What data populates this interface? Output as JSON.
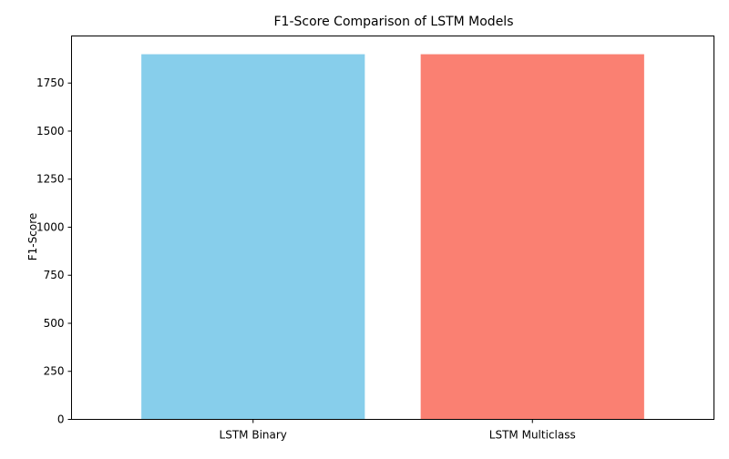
{
  "chart_data": {
    "type": "bar",
    "title": "F1-Score Comparison of LSTM Models",
    "xlabel": "",
    "ylabel": "F1-Score",
    "categories": [
      "LSTM Binary",
      "LSTM Multiclass"
    ],
    "values": [
      1900,
      1900
    ],
    "colors": [
      "#87ceeb",
      "#fa8072"
    ],
    "ylim": [
      0,
      1995
    ],
    "yticks": [
      0,
      250,
      500,
      750,
      1000,
      1250,
      1500,
      1750
    ],
    "grid": false,
    "legend": "none"
  }
}
